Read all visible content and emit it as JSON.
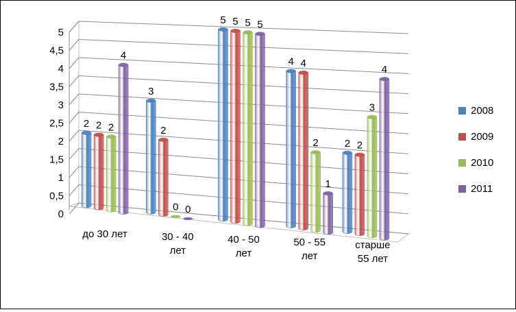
{
  "chart_data": {
    "type": "bar",
    "style": "3d-cylinder",
    "categories": [
      [
        "до 30 лет"
      ],
      [
        "30 - 40",
        "лет"
      ],
      [
        "40 - 50",
        "лет"
      ],
      [
        "50 - 55",
        "лет"
      ],
      [
        "старше",
        "55 лет"
      ]
    ],
    "y_ticks": [
      "0",
      "0,5",
      "1",
      "1,5",
      "2",
      "2,5",
      "3",
      "3,5",
      "4",
      "4,5",
      "5"
    ],
    "ylim": [
      0,
      5
    ],
    "grid": true,
    "legend_position": "right",
    "series": [
      {
        "name": "2008",
        "color": "#4F81BD",
        "values": [
          2,
          3,
          5,
          4,
          2
        ]
      },
      {
        "name": "2009",
        "color": "#C0504D",
        "values": [
          2,
          2,
          5,
          4,
          2
        ]
      },
      {
        "name": "2010",
        "color": "#9BBB59",
        "values": [
          2,
          0,
          5,
          2,
          3
        ]
      },
      {
        "name": "2011",
        "color": "#8064A2",
        "values": [
          4,
          0,
          5,
          1,
          4
        ]
      }
    ]
  }
}
